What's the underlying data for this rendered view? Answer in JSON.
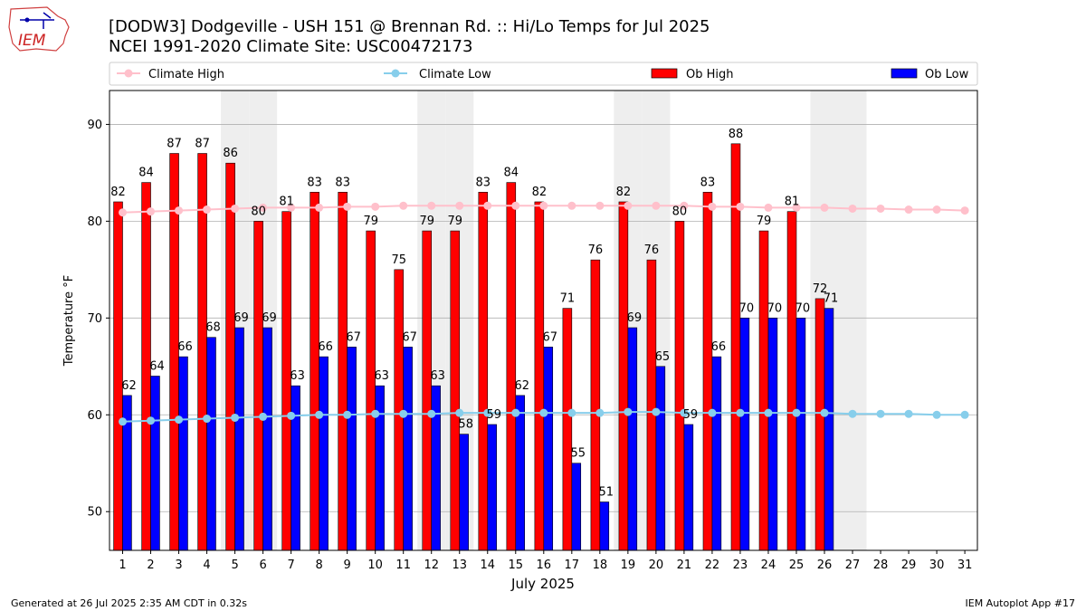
{
  "title_line1": "[DODW3] Dodgeville - USH 151 @ Brennan Rd. :: Hi/Lo Temps for Jul 2025",
  "title_line2": "NCEI 1991-2020 Climate Site: USC00472173",
  "logo_text": "IEM",
  "footer_left": "Generated at 26 Jul 2025 2:35 AM CDT in 0.32s",
  "footer_right": "IEM Autoplot App #17",
  "colors": {
    "ob_high": "#ff0000",
    "ob_low": "#0000ff",
    "climate_high": "#ffc0cb",
    "climate_low": "#87ceeb",
    "weekend_shade": "#eeeeee",
    "grid": "#b0b0b0"
  },
  "chart_data": {
    "type": "bar",
    "xlabel": "July 2025",
    "ylabel": "Temperature °F",
    "ylim": [
      46,
      93.5
    ],
    "yticks": [
      50,
      60,
      70,
      80,
      90
    ],
    "grid": "horizontal",
    "legend_placement": "top",
    "categories": [
      "1",
      "2",
      "3",
      "4",
      "5",
      "6",
      "7",
      "8",
      "9",
      "10",
      "11",
      "12",
      "13",
      "14",
      "15",
      "16",
      "17",
      "18",
      "19",
      "20",
      "21",
      "22",
      "23",
      "24",
      "25",
      "26",
      "27",
      "28",
      "29",
      "30",
      "31"
    ],
    "weekend_days": [
      5,
      6,
      12,
      13,
      19,
      20,
      26,
      27
    ],
    "bar_series": [
      {
        "name": "Ob High",
        "values": [
          82,
          84,
          87,
          87,
          86,
          80,
          81,
          83,
          83,
          79,
          75,
          79,
          79,
          83,
          84,
          82,
          71,
          76,
          82,
          76,
          80,
          83,
          88,
          79,
          81,
          72
        ]
      },
      {
        "name": "Ob Low",
        "values": [
          62,
          64,
          66,
          68,
          69,
          69,
          63,
          66,
          67,
          63,
          67,
          63,
          58,
          59,
          62,
          67,
          55,
          51,
          69,
          65,
          59,
          66,
          70,
          70,
          70,
          71
        ]
      }
    ],
    "line_series": [
      {
        "name": "Climate High",
        "values": [
          80.9,
          81.0,
          81.1,
          81.2,
          81.3,
          81.4,
          81.4,
          81.4,
          81.5,
          81.5,
          81.6,
          81.6,
          81.6,
          81.6,
          81.6,
          81.6,
          81.6,
          81.6,
          81.6,
          81.6,
          81.6,
          81.5,
          81.5,
          81.4,
          81.4,
          81.4,
          81.3,
          81.3,
          81.2,
          81.2,
          81.1
        ]
      },
      {
        "name": "Climate Low",
        "values": [
          59.3,
          59.4,
          59.5,
          59.6,
          59.7,
          59.8,
          59.9,
          60.0,
          60.0,
          60.1,
          60.1,
          60.1,
          60.2,
          60.2,
          60.2,
          60.2,
          60.2,
          60.2,
          60.3,
          60.3,
          60.2,
          60.2,
          60.2,
          60.2,
          60.2,
          60.2,
          60.1,
          60.1,
          60.1,
          60.0,
          60.0
        ]
      }
    ]
  }
}
